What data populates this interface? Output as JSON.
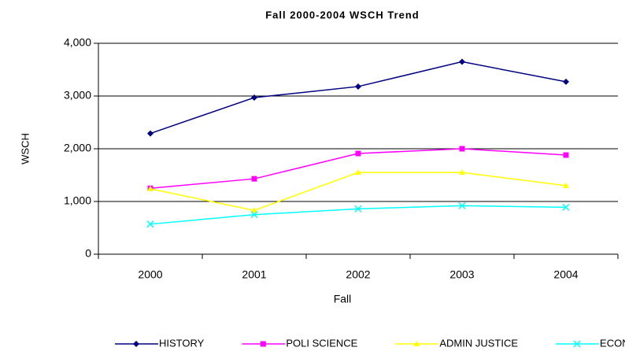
{
  "chart_data": {
    "type": "line",
    "title": "Fall 2000-2004 WSCH Trend",
    "x_label": "Fall",
    "y_label": "WSCH",
    "categories": [
      "2000",
      "2001",
      "2002",
      "2003",
      "2004"
    ],
    "series": [
      {
        "name": "HISTORY",
        "color": "#000080",
        "marker": "diamond",
        "values": [
          2290,
          2970,
          3180,
          3650,
          3270
        ]
      },
      {
        "name": "POLI SCIENCE",
        "color": "#ff00ff",
        "marker": "square",
        "values": [
          1250,
          1430,
          1910,
          2000,
          1880
        ]
      },
      {
        "name": "ADMIN JUSTICE",
        "color": "#ffff00",
        "marker": "triangle",
        "values": [
          1240,
          830,
          1550,
          1550,
          1300
        ]
      },
      {
        "name": "ECONOMICS",
        "color": "#00ffff",
        "marker": "x",
        "values": [
          570,
          750,
          860,
          920,
          890
        ]
      }
    ],
    "ylim": [
      0,
      4000
    ],
    "yticks": [
      0,
      {
        "value": 1000,
        "label": "1,000"
      },
      {
        "value": 2000,
        "label": "2,000"
      },
      {
        "value": 3000,
        "label": "3,000"
      },
      {
        "value": 4000,
        "label": "4,000"
      }
    ],
    "grid": true,
    "legend": "bottom"
  }
}
